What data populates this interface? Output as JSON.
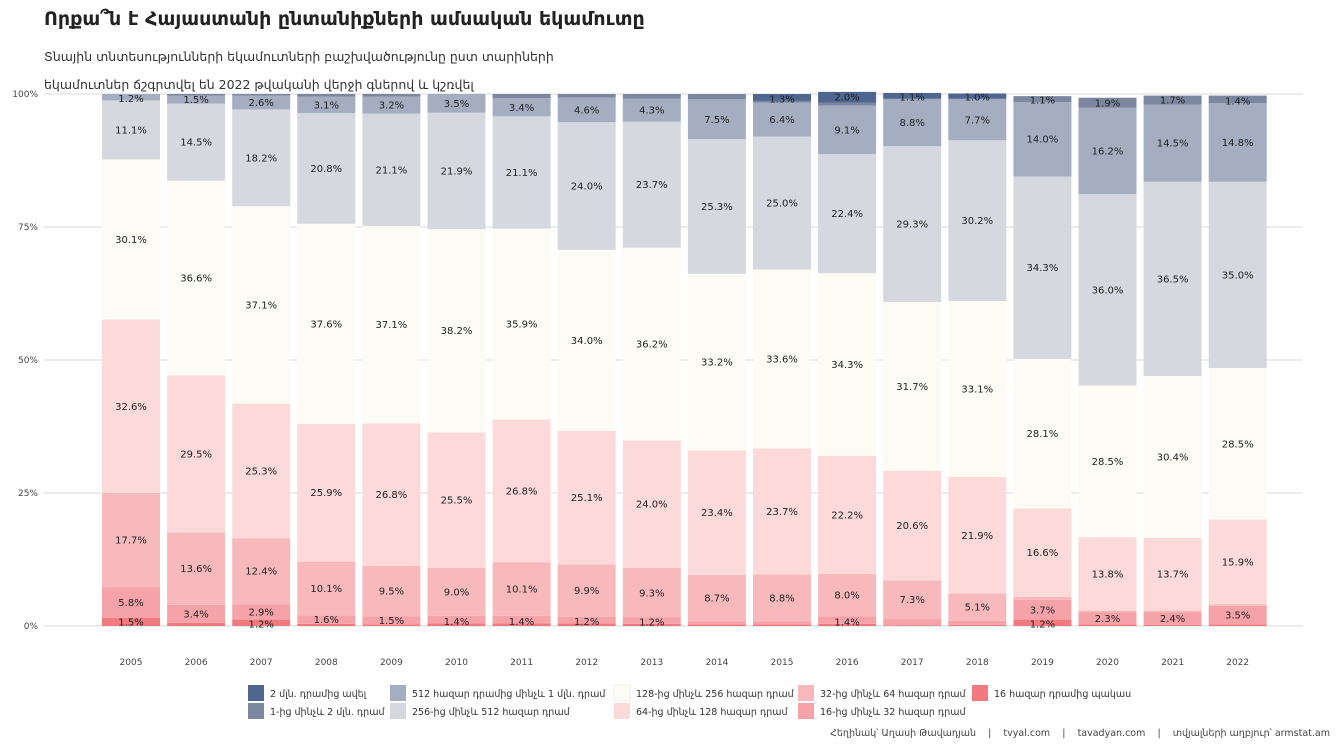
{
  "title": "Որքա՞ն է Հայաստանի ընտանիքների ամսական եկամուտը",
  "subtitle_lines": [
    "Տնային տնտեսությունների եկամուտների բաշխվածությունը ըստ տարիների",
    "եկամուտներ ճշգրտվել են 2022 թվականի վերջի գներով և կշռվել"
  ],
  "footer": {
    "author": "Հեղինակ՝ Աղասի Թավադյան",
    "site1": "tvyal.com",
    "site2": "tavadyan.com",
    "source": "տվյալների աղբյուր՝ armstat.am",
    "separator": "|"
  },
  "chart_data": {
    "type": "bar",
    "stacked": true,
    "normalized": true,
    "ylim": [
      0,
      100
    ],
    "y_ticks": [
      "0%",
      "25%",
      "50%",
      "75%",
      "100%"
    ],
    "grid": true,
    "legend_position": "bottom",
    "categories": [
      "2005",
      "2006",
      "2007",
      "2008",
      "2009",
      "2010",
      "2011",
      "2012",
      "2013",
      "2014",
      "2015",
      "2016",
      "2017",
      "2018",
      "2019",
      "2020",
      "2021",
      "2022"
    ],
    "series": [
      {
        "name": "16 հազար դրամից պակաս",
        "color": "#f07a7e",
        "values": [
          1.5,
          0.6,
          1.2,
          0.4,
          0.3,
          0.5,
          0.5,
          0.5,
          0.4,
          0.3,
          0.3,
          0.4,
          0.1,
          0.2,
          1.2,
          0.3,
          0.2,
          0.3
        ],
        "labels": [
          "1.5%",
          "",
          "1.2%",
          "",
          "",
          "",
          "",
          "",
          "",
          "",
          "",
          "",
          "",
          "",
          "1.2%",
          "",
          "",
          ""
        ]
      },
      {
        "name": "16-ից մինչև 32 հազար դրամ",
        "color": "#f5a3a8",
        "values": [
          5.8,
          3.4,
          2.9,
          1.6,
          1.5,
          1.4,
          1.4,
          1.2,
          1.2,
          0.6,
          0.6,
          1.4,
          1.2,
          0.8,
          3.7,
          2.3,
          2.4,
          3.5
        ],
        "labels": [
          "5.8%",
          "3.4%",
          "2.9%",
          "1.6%",
          "1.5%",
          "1.4%",
          "1.4%",
          "1.2%",
          "1.2%",
          "",
          "",
          "1.4%",
          "",
          "",
          "3.7%",
          "2.3%",
          "2.4%",
          "3.5%"
        ]
      },
      {
        "name": "32-ից մինչև 64 հազար դրամ",
        "color": "#f8b9bc",
        "values": [
          17.7,
          13.6,
          12.4,
          10.1,
          9.5,
          9.0,
          10.1,
          9.9,
          9.3,
          8.7,
          8.8,
          8.0,
          7.3,
          5.1,
          0.6,
          0.3,
          0.3,
          0.3
        ],
        "labels": [
          "17.7%",
          "13.6%",
          "12.4%",
          "10.1%",
          "9.5%",
          "9.0%",
          "10.1%",
          "9.9%",
          "9.3%",
          "8.7%",
          "8.8%",
          "8.0%",
          "7.3%",
          "5.1%",
          "",
          "",
          "",
          ""
        ]
      },
      {
        "name": "64-ից մինչև 128 հազար դրամ",
        "color": "#fcdad9",
        "values": [
          32.6,
          29.5,
          25.3,
          25.9,
          26.8,
          25.5,
          26.8,
          25.1,
          24.0,
          23.4,
          23.7,
          22.2,
          20.6,
          21.9,
          16.6,
          13.8,
          13.7,
          15.9
        ],
        "labels": [
          "32.6%",
          "29.5%",
          "25.3%",
          "25.9%",
          "26.8%",
          "25.5%",
          "26.8%",
          "25.1%",
          "24.0%",
          "23.4%",
          "23.7%",
          "22.2%",
          "20.6%",
          "21.9%",
          "16.6%",
          "13.8%",
          "13.7%",
          "15.9%"
        ]
      },
      {
        "name": "128-ից մինչև 256 հազար դրամ",
        "color": "#fdfcf4",
        "values": [
          30.1,
          36.6,
          37.1,
          37.6,
          37.1,
          38.2,
          35.9,
          34.0,
          36.2,
          33.2,
          33.6,
          34.3,
          31.7,
          33.1,
          28.1,
          28.5,
          30.4,
          28.5
        ],
        "labels": [
          "30.1%",
          "36.6%",
          "37.1%",
          "37.6%",
          "37.1%",
          "38.2%",
          "35.9%",
          "34.0%",
          "36.2%",
          "33.2%",
          "33.6%",
          "34.3%",
          "31.7%",
          "33.1%",
          "28.1%",
          "28.5%",
          "30.4%",
          "28.5%"
        ]
      },
      {
        "name": "256-ից մինչև 512 հազար դրամ",
        "color": "#d5d8de",
        "values": [
          11.1,
          14.5,
          18.2,
          20.8,
          21.1,
          21.9,
          21.1,
          24.0,
          23.7,
          25.3,
          25.0,
          22.4,
          29.3,
          30.2,
          34.3,
          36.0,
          36.5,
          35.0
        ],
        "labels": [
          "11.1%",
          "14.5%",
          "18.2%",
          "20.8%",
          "21.1%",
          "21.9%",
          "21.1%",
          "24.0%",
          "23.7%",
          "25.3%",
          "25.0%",
          "22.4%",
          "29.3%",
          "30.2%",
          "34.3%",
          "36.0%",
          "36.5%",
          "35.0%"
        ]
      },
      {
        "name": "512 հազար դրամից մինչև 1 մլն. դրամ",
        "color": "#a4aec0",
        "values": [
          1.2,
          1.5,
          2.6,
          3.1,
          3.2,
          3.5,
          3.4,
          4.6,
          4.3,
          7.5,
          6.4,
          9.1,
          8.8,
          7.7,
          14.0,
          16.2,
          14.5,
          14.8
        ],
        "labels": [
          "1.2%",
          "1.5%",
          "2.6%",
          "3.1%",
          "3.2%",
          "3.5%",
          "3.4%",
          "4.6%",
          "4.3%",
          "7.5%",
          "6.4%",
          "9.1%",
          "8.8%",
          "7.7%",
          "14.0%",
          "16.2%",
          "14.5%",
          "14.8%"
        ]
      },
      {
        "name": "1-ից մինչև 2 մլն. դրամ",
        "color": "#7b879f",
        "values": [
          0,
          0.3,
          0.3,
          0.5,
          0.5,
          0,
          0.8,
          0.7,
          0.9,
          1.0,
          0.3,
          0.6,
          0.1,
          0.1,
          1.1,
          1.9,
          1.7,
          1.4
        ],
        "labels": [
          "",
          "",
          "",
          "",
          "",
          "",
          "",
          "",
          "",
          "",
          "",
          "",
          "",
          "",
          "1.1%",
          "1.9%",
          "1.7%",
          "1.4%"
        ]
      },
      {
        "name": "2 մլն. դրամից ավել",
        "color": "#4e6690",
        "values": [
          0,
          0,
          0,
          0,
          0,
          0,
          0,
          0,
          0,
          0,
          1.3,
          2.0,
          1.1,
          1.0,
          0,
          0,
          0,
          0
        ],
        "labels": [
          "",
          "",
          "",
          "",
          "",
          "",
          "",
          "",
          "",
          "",
          "1.3%",
          "2.0%",
          "1.1%",
          "1.0%",
          "",
          "",
          "",
          ""
        ]
      }
    ],
    "legend_order": [
      8,
      7,
      6,
      5,
      4,
      3,
      2,
      1,
      0
    ]
  }
}
